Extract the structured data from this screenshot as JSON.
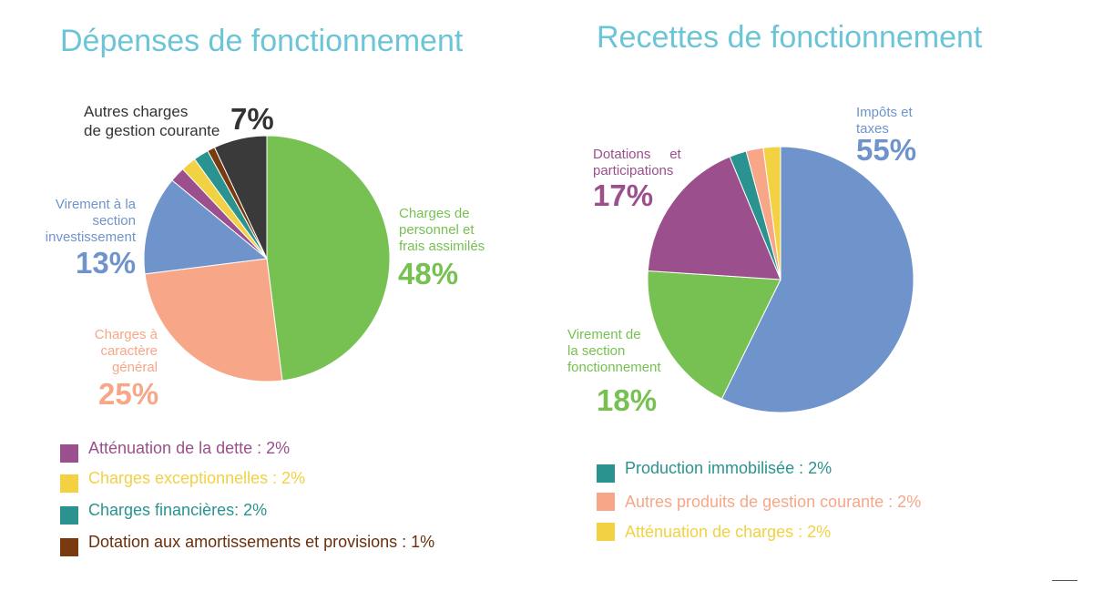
{
  "titles": {
    "left": "Dépenses de fonctionnement",
    "right": "Recettes de fonctionnement"
  },
  "chart_data": [
    {
      "type": "pie",
      "title": "Dépenses de fonctionnement",
      "slices": [
        {
          "key": "charges_personnel",
          "label": "Charges de\npersonnel et\nfrais assimilés",
          "value": 48,
          "pct_text": "48%",
          "color": "#77c152"
        },
        {
          "key": "charges_general",
          "label": "Charges à\ncaractère\ngénéral",
          "value": 25,
          "pct_text": "25%",
          "color": "#f7a788"
        },
        {
          "key": "virement_invest",
          "label": "Virement à la\nsection\ninvestissement",
          "value": 13,
          "pct_text": "13%",
          "color": "#6f94cc"
        },
        {
          "key": "attenuation_dette",
          "label": "Atténuation de la dette : 2%",
          "value": 2,
          "color": "#9b4f8c"
        },
        {
          "key": "charges_exceptionnelles",
          "label": "Charges exceptionnelles : 2%",
          "value": 2,
          "color": "#f2d143"
        },
        {
          "key": "charges_financieres",
          "label": "Charges financières: 2%",
          "value": 2,
          "color": "#2a938f"
        },
        {
          "key": "dotation_amortissements",
          "label": "Dotation aux amortissements et provisions : 1%",
          "value": 1,
          "color": "#7a3a10"
        },
        {
          "key": "autres_charges",
          "label": "Autres charges\nde gestion courante",
          "value": 7,
          "pct_text": "7%",
          "color": "#3a3a3a"
        }
      ]
    },
    {
      "type": "pie",
      "title": "Recettes de fonctionnement",
      "slices": [
        {
          "key": "impots_taxes",
          "label": "Impôts et\ntaxes",
          "value": 55,
          "pct_text": "55%",
          "color": "#6f94cc"
        },
        {
          "key": "virement_fonct",
          "label": "Virement de\nla section\nfonctionnement",
          "value": 18,
          "pct_text": "18%",
          "color": "#77c152"
        },
        {
          "key": "dotations",
          "label": "Dotations     et\nparticipations",
          "value": 17,
          "pct_text": "17%",
          "color": "#9b4f8c"
        },
        {
          "key": "production_immo",
          "label": "Production immobilisée : 2%",
          "value": 2,
          "color": "#2a938f"
        },
        {
          "key": "autres_produits",
          "label": "Autres produits de gestion courante : 2%",
          "value": 2,
          "color": "#f7a788"
        },
        {
          "key": "attenuation_charges",
          "label": "Atténuation de charges : 2%",
          "value": 2,
          "color": "#f2d143"
        }
      ]
    }
  ],
  "legend_text_colors": {
    "attenuation_dette": "#9b4f8c",
    "charges_exceptionnelles": "#f2d143",
    "charges_financieres": "#2a938f",
    "dotation_amortissements": "#6a2f0c",
    "production_immo": "#2a938f",
    "autres_produits": "#f7a788",
    "attenuation_charges": "#f2d143"
  }
}
